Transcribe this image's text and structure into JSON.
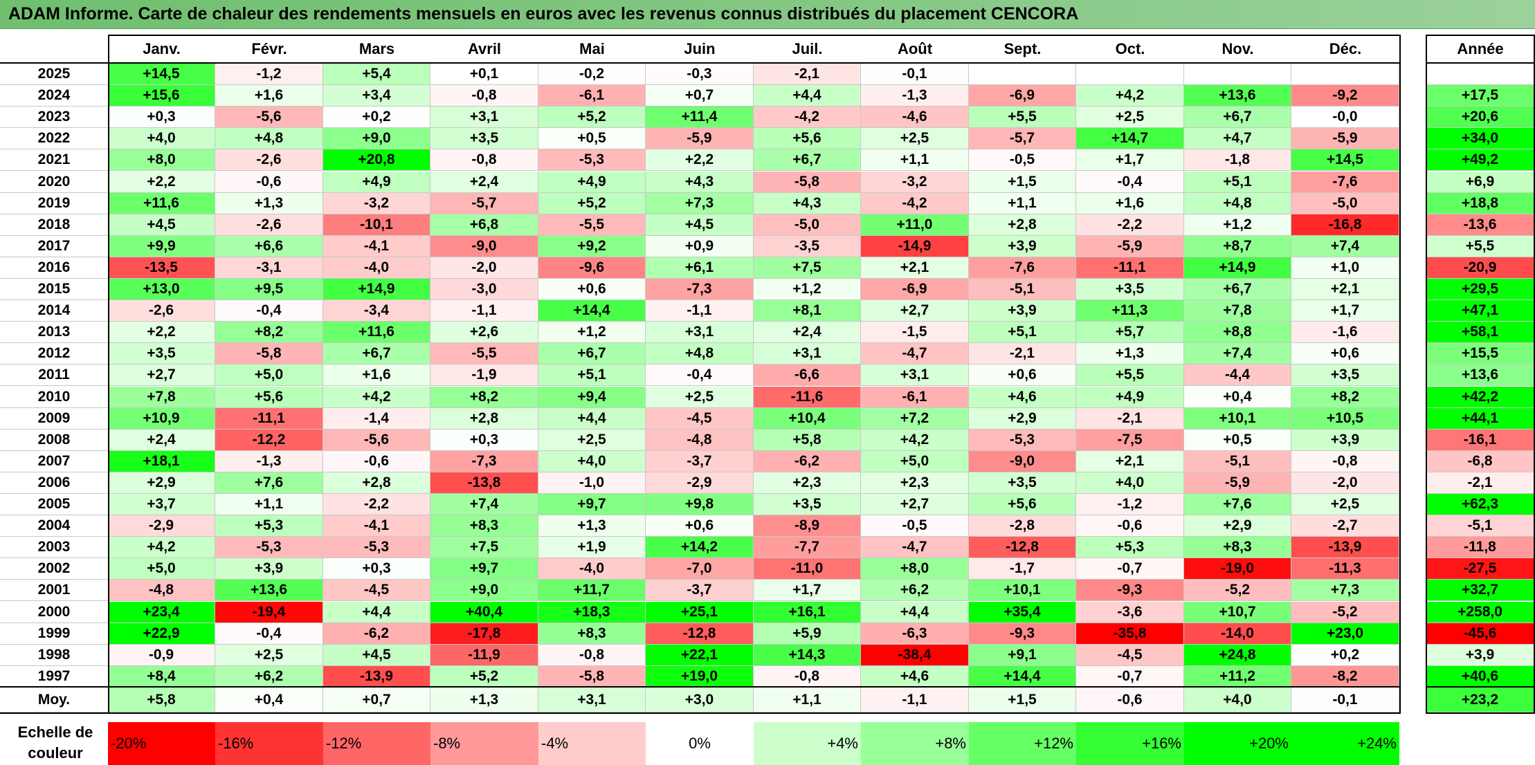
{
  "title": "ADAM Informe. Carte de chaleur des rendements mensuels en euros avec les revenus connus distribués du placement CENCORA",
  "chart_data": {
    "type": "heatmap",
    "title": "ADAM Informe. Carte de chaleur des rendements mensuels en euros avec les revenus connus distribués du placement CENCORA",
    "months": [
      "Janv.",
      "Févr.",
      "Mars",
      "Avril",
      "Mai",
      "Juin",
      "Juil.",
      "Août",
      "Sept.",
      "Oct.",
      "Nov.",
      "Déc."
    ],
    "annual_label": "Année",
    "average_label": "Moy.",
    "rows": [
      {
        "year": "2025",
        "values": [
          "+14,5",
          "-1,2",
          "+5,4",
          "+0,1",
          "-0,2",
          "-0,3",
          "-2,1",
          "-0,1",
          "",
          "",
          "",
          ""
        ],
        "annual": ""
      },
      {
        "year": "2024",
        "values": [
          "+15,6",
          "+1,6",
          "+3,4",
          "-0,8",
          "-6,1",
          "+0,7",
          "+4,4",
          "-1,3",
          "-6,9",
          "+4,2",
          "+13,6",
          "-9,2"
        ],
        "annual": "+17,5"
      },
      {
        "year": "2023",
        "values": [
          "+0,3",
          "-5,6",
          "+0,2",
          "+3,1",
          "+5,2",
          "+11,4",
          "-4,2",
          "-4,6",
          "+5,5",
          "+2,5",
          "+6,7",
          "-0,0"
        ],
        "annual": "+20,6"
      },
      {
        "year": "2022",
        "values": [
          "+4,0",
          "+4,8",
          "+9,0",
          "+3,5",
          "+0,5",
          "-5,9",
          "+5,6",
          "+2,5",
          "-5,7",
          "+14,7",
          "+4,7",
          "-5,9"
        ],
        "annual": "+34,0"
      },
      {
        "year": "2021",
        "values": [
          "+8,0",
          "-2,6",
          "+20,8",
          "-0,8",
          "-5,3",
          "+2,2",
          "+6,7",
          "+1,1",
          "-0,5",
          "+1,7",
          "-1,8",
          "+14,5"
        ],
        "annual": "+49,2"
      },
      {
        "year": "2020",
        "values": [
          "+2,2",
          "-0,6",
          "+4,9",
          "+2,4",
          "+4,9",
          "+4,3",
          "-5,8",
          "-3,2",
          "+1,5",
          "-0,4",
          "+5,1",
          "-7,6"
        ],
        "annual": "+6,9"
      },
      {
        "year": "2019",
        "values": [
          "+11,6",
          "+1,3",
          "-3,2",
          "-5,7",
          "+5,2",
          "+7,3",
          "+4,3",
          "-4,2",
          "+1,1",
          "+1,6",
          "+4,8",
          "-5,0"
        ],
        "annual": "+18,8"
      },
      {
        "year": "2018",
        "values": [
          "+4,5",
          "-2,6",
          "-10,1",
          "+6,8",
          "-5,5",
          "+4,5",
          "-5,0",
          "+11,0",
          "+2,8",
          "-2,2",
          "+1,2",
          "-16,8"
        ],
        "annual": "-13,6"
      },
      {
        "year": "2017",
        "values": [
          "+9,9",
          "+6,6",
          "-4,1",
          "-9,0",
          "+9,2",
          "+0,9",
          "-3,5",
          "-14,9",
          "+3,9",
          "-5,9",
          "+8,7",
          "+7,4"
        ],
        "annual": "+5,5"
      },
      {
        "year": "2016",
        "values": [
          "-13,5",
          "-3,1",
          "-4,0",
          "-2,0",
          "-9,6",
          "+6,1",
          "+7,5",
          "+2,1",
          "-7,6",
          "-11,1",
          "+14,9",
          "+1,0"
        ],
        "annual": "-20,9"
      },
      {
        "year": "2015",
        "values": [
          "+13,0",
          "+9,5",
          "+14,9",
          "-3,0",
          "+0,6",
          "-7,3",
          "+1,2",
          "-6,9",
          "-5,1",
          "+3,5",
          "+6,7",
          "+2,1"
        ],
        "annual": "+29,5"
      },
      {
        "year": "2014",
        "values": [
          "-2,6",
          "-0,4",
          "-3,4",
          "-1,1",
          "+14,4",
          "-1,1",
          "+8,1",
          "+2,7",
          "+3,9",
          "+11,3",
          "+7,8",
          "+1,7"
        ],
        "annual": "+47,1"
      },
      {
        "year": "2013",
        "values": [
          "+2,2",
          "+8,2",
          "+11,6",
          "+2,6",
          "+1,2",
          "+3,1",
          "+2,4",
          "-1,5",
          "+5,1",
          "+5,7",
          "+8,8",
          "-1,6"
        ],
        "annual": "+58,1"
      },
      {
        "year": "2012",
        "values": [
          "+3,5",
          "-5,8",
          "+6,7",
          "-5,5",
          "+6,7",
          "+4,8",
          "+3,1",
          "-4,7",
          "-2,1",
          "+1,3",
          "+7,4",
          "+0,6"
        ],
        "annual": "+15,5"
      },
      {
        "year": "2011",
        "values": [
          "+2,7",
          "+5,0",
          "+1,6",
          "-1,9",
          "+5,1",
          "-0,4",
          "-6,6",
          "+3,1",
          "+0,6",
          "+5,5",
          "-4,4",
          "+3,5"
        ],
        "annual": "+13,6"
      },
      {
        "year": "2010",
        "values": [
          "+7,8",
          "+5,6",
          "+4,2",
          "+8,2",
          "+9,4",
          "+2,5",
          "-11,6",
          "-6,1",
          "+4,6",
          "+4,9",
          "+0,4",
          "+8,2"
        ],
        "annual": "+42,2"
      },
      {
        "year": "2009",
        "values": [
          "+10,9",
          "-11,1",
          "-1,4",
          "+2,8",
          "+4,4",
          "-4,5",
          "+10,4",
          "+7,2",
          "+2,9",
          "-2,1",
          "+10,1",
          "+10,5"
        ],
        "annual": "+44,1"
      },
      {
        "year": "2008",
        "values": [
          "+2,4",
          "-12,2",
          "-5,6",
          "+0,3",
          "+2,5",
          "-4,8",
          "+5,8",
          "+4,2",
          "-5,3",
          "-7,5",
          "+0,5",
          "+3,9"
        ],
        "annual": "-16,1"
      },
      {
        "year": "2007",
        "values": [
          "+18,1",
          "-1,3",
          "-0,6",
          "-7,3",
          "+4,0",
          "-3,7",
          "-6,2",
          "+5,0",
          "-9,0",
          "+2,1",
          "-5,1",
          "-0,8"
        ],
        "annual": "-6,8"
      },
      {
        "year": "2006",
        "values": [
          "+2,9",
          "+7,6",
          "+2,8",
          "-13,8",
          "-1,0",
          "-2,9",
          "+2,3",
          "+2,3",
          "+3,5",
          "+4,0",
          "-5,9",
          "-2,0"
        ],
        "annual": "-2,1"
      },
      {
        "year": "2005",
        "values": [
          "+3,7",
          "+1,1",
          "-2,2",
          "+7,4",
          "+9,7",
          "+9,8",
          "+3,5",
          "+2,7",
          "+5,6",
          "-1,2",
          "+7,6",
          "+2,5"
        ],
        "annual": "+62,3"
      },
      {
        "year": "2004",
        "values": [
          "-2,9",
          "+5,3",
          "-4,1",
          "+8,3",
          "+1,3",
          "+0,6",
          "-8,9",
          "-0,5",
          "-2,8",
          "-0,6",
          "+2,9",
          "-2,7"
        ],
        "annual": "-5,1"
      },
      {
        "year": "2003",
        "values": [
          "+4,2",
          "-5,3",
          "-5,3",
          "+7,5",
          "+1,9",
          "+14,2",
          "-7,7",
          "-4,7",
          "-12,8",
          "+5,3",
          "+8,3",
          "-13,9"
        ],
        "annual": "-11,8"
      },
      {
        "year": "2002",
        "values": [
          "+5,0",
          "+3,9",
          "+0,3",
          "+9,7",
          "-4,0",
          "-7,0",
          "-11,0",
          "+8,0",
          "-1,7",
          "-0,7",
          "-19,0",
          "-11,3"
        ],
        "annual": "-27,5"
      },
      {
        "year": "2001",
        "values": [
          "-4,8",
          "+13,6",
          "-4,5",
          "+9,0",
          "+11,7",
          "-3,7",
          "+1,7",
          "+6,2",
          "+10,1",
          "-9,3",
          "-5,2",
          "+7,3"
        ],
        "annual": "+32,7"
      },
      {
        "year": "2000",
        "values": [
          "+23,4",
          "-19,4",
          "+4,4",
          "+40,4",
          "+18,3",
          "+25,1",
          "+16,1",
          "+4,4",
          "+35,4",
          "-3,6",
          "+10,7",
          "-5,2"
        ],
        "annual": "+258,0"
      },
      {
        "year": "1999",
        "values": [
          "+22,9",
          "-0,4",
          "-6,2",
          "-17,8",
          "+8,3",
          "-12,8",
          "+5,9",
          "-6,3",
          "-9,3",
          "-35,8",
          "-14,0",
          "+23,0"
        ],
        "annual": "-45,6"
      },
      {
        "year": "1998",
        "values": [
          "-0,9",
          "+2,5",
          "+4,5",
          "-11,9",
          "-0,8",
          "+22,1",
          "+14,3",
          "-38,4",
          "+9,1",
          "-4,5",
          "+24,8",
          "+0,2"
        ],
        "annual": "+3,9"
      },
      {
        "year": "1997",
        "values": [
          "+8,4",
          "+6,2",
          "-13,9",
          "+5,2",
          "-5,8",
          "+19,0",
          "-0,8",
          "+4,6",
          "+14,4",
          "-0,7",
          "+11,2",
          "-8,2"
        ],
        "annual": "+40,6"
      }
    ],
    "averages": [
      "+5,8",
      "+0,4",
      "+0,7",
      "+1,3",
      "+3,1",
      "+3,0",
      "+1,1",
      "-1,1",
      "+1,5",
      "-0,6",
      "+4,0",
      "-0,1"
    ],
    "average_annual": "+23,2",
    "color_scale": {
      "label_line1": "Echelle de",
      "label_line2": "couleur",
      "steps": [
        "-20%",
        "-16%",
        "-12%",
        "-8%",
        "-4%",
        "0%",
        "+4%",
        "+8%",
        "+12%",
        "+16%",
        "+20%",
        "+24%"
      ],
      "step_values": [
        -20,
        -16,
        -12,
        -8,
        -4,
        0,
        4,
        8,
        12,
        16,
        20,
        24
      ],
      "negative_color": "#ff0000",
      "neutral_color": "#ffffff",
      "positive_color": "#00ff00"
    }
  }
}
